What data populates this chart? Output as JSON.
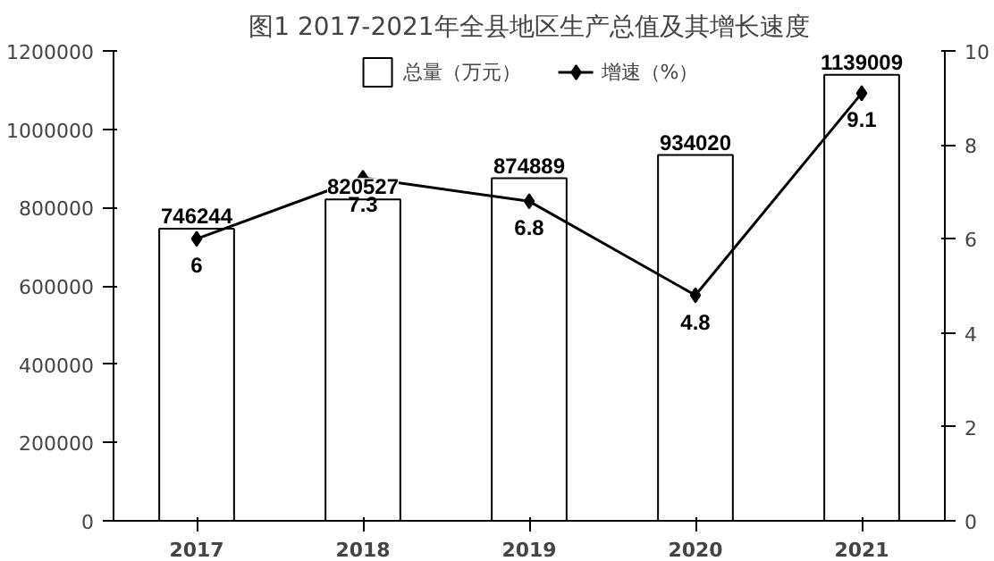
{
  "chart_data": {
    "type": "bar",
    "title": "图1 2017-2021年全县地区生产总值及其增长速度",
    "categories": [
      "2017",
      "2018",
      "2019",
      "2020",
      "2021"
    ],
    "series": [
      {
        "name": "总量（万元）",
        "color": "#ffffff",
        "values": [
          746244,
          820527,
          874889,
          934020,
          1139009
        ]
      },
      {
        "name": "增速（%）",
        "type": "line",
        "axis": "y2",
        "color": "#000000",
        "values": [
          6,
          7.3,
          6.8,
          4.8,
          9.1
        ]
      }
    ],
    "ylim": [
      0,
      1200000
    ],
    "yticks": [
      0,
      200000,
      400000,
      600000,
      800000,
      1000000,
      1200000
    ],
    "y2lim": [
      0,
      10
    ],
    "y2ticks": [
      0,
      2,
      4,
      6,
      8,
      10
    ],
    "data_labels": true,
    "legend": "top",
    "grid": false,
    "marker": "diamond",
    "line_style": "solid"
  }
}
